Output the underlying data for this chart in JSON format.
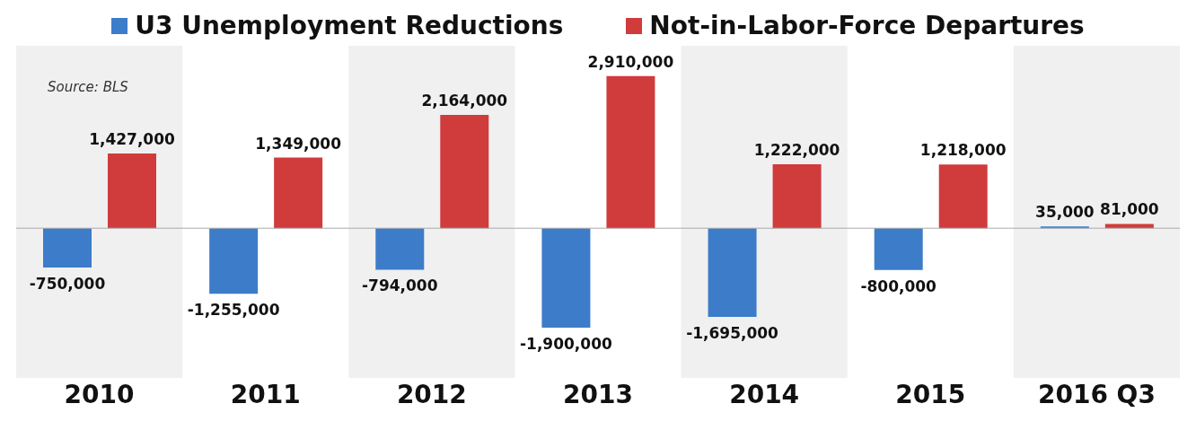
{
  "chart_data": {
    "type": "bar",
    "categories": [
      "2010",
      "2011",
      "2012",
      "2013",
      "2014",
      "2015",
      "2016 Q3"
    ],
    "series": [
      {
        "name": "U3 Unemployment Reductions",
        "color": "#3d7cc9",
        "values": [
          -750000,
          -1255000,
          -794000,
          -1900000,
          -1695000,
          -800000,
          35000
        ],
        "value_labels": [
          "-750,000",
          "-1,255,000",
          "-794,000",
          "-1,900,000",
          "-1,695,000",
          "-800,000",
          "35,000"
        ]
      },
      {
        "name": "Not-in-Labor-Force Departures",
        "color": "#d03b3b",
        "values": [
          1427000,
          1349000,
          2164000,
          2910000,
          1222000,
          1218000,
          81000
        ],
        "value_labels": [
          "1,427,000",
          "1,349,000",
          "2,164,000",
          "2,910,000",
          "1,222,000",
          "1,218,000",
          "81,000"
        ]
      }
    ],
    "bands": [
      {
        "axis": "x",
        "from": "2010",
        "to": "2010",
        "color": "#f0f0f0"
      },
      {
        "axis": "x",
        "from": "2012",
        "to": "2012",
        "color": "#f0f0f0"
      },
      {
        "axis": "x",
        "from": "2014",
        "to": "2014",
        "color": "#f0f0f0"
      },
      {
        "axis": "x",
        "from": "2016 Q3",
        "to": "2016 Q3",
        "color": "#f0f0f0"
      }
    ],
    "annotations": [
      "Source: BLS"
    ],
    "legend": "top"
  }
}
